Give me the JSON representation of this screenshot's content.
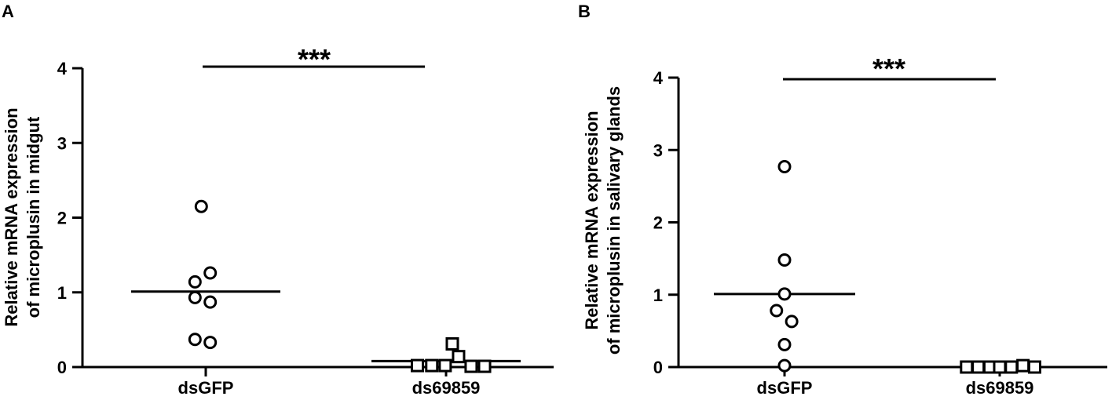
{
  "chart_data": [
    {
      "type": "scatter",
      "panel_label": "A",
      "title": "",
      "xlabel": "",
      "ylabel": [
        "Relative mRNA expression",
        "of microplusin in midgut"
      ],
      "ylim": [
        0,
        4
      ],
      "yticks": [
        0,
        1,
        2,
        3,
        4
      ],
      "categories": [
        "dsGFP",
        "ds69859"
      ],
      "series": [
        {
          "category": "dsGFP",
          "marker": "circle",
          "points": [
            {
              "x": -0.05,
              "y": 2.15
            },
            {
              "x": 0.05,
              "y": 1.26
            },
            {
              "x": -0.12,
              "y": 1.14
            },
            {
              "x": -0.12,
              "y": 0.93
            },
            {
              "x": 0.05,
              "y": 0.87
            },
            {
              "x": -0.12,
              "y": 0.37
            },
            {
              "x": 0.05,
              "y": 0.33
            }
          ],
          "mean": 1.01
        },
        {
          "category": "ds69859",
          "marker": "square",
          "points": [
            {
              "x": -0.32,
              "y": 0.02
            },
            {
              "x": -0.16,
              "y": 0.02
            },
            {
              "x": -0.01,
              "y": 0.02
            },
            {
              "x": 0.07,
              "y": 0.31
            },
            {
              "x": 0.14,
              "y": 0.14
            },
            {
              "x": 0.28,
              "y": 0.01
            },
            {
              "x": 0.43,
              "y": 0.01
            }
          ],
          "mean": 0.08
        }
      ],
      "significance": {
        "label": "***",
        "y": 4.0
      }
    },
    {
      "type": "scatter",
      "panel_label": "B",
      "title": "",
      "xlabel": "",
      "ylabel": [
        "Relative mRNA expression",
        "of microplusin in salivary glands"
      ],
      "ylim": [
        0,
        4
      ],
      "yticks": [
        0,
        1,
        2,
        3,
        4
      ],
      "categories": [
        "dsGFP",
        "ds69859"
      ],
      "series": [
        {
          "category": "dsGFP",
          "marker": "circle",
          "points": [
            {
              "x": 0.0,
              "y": 2.77
            },
            {
              "x": 0.0,
              "y": 1.48
            },
            {
              "x": 0.0,
              "y": 1.01
            },
            {
              "x": -0.09,
              "y": 0.78
            },
            {
              "x": 0.08,
              "y": 0.63
            },
            {
              "x": 0.0,
              "y": 0.31
            },
            {
              "x": 0.0,
              "y": 0.02
            }
          ],
          "mean": 1.01
        },
        {
          "category": "ds69859",
          "marker": "square",
          "points": [
            {
              "x": -0.37,
              "y": 0.0
            },
            {
              "x": -0.24,
              "y": 0.0
            },
            {
              "x": -0.11,
              "y": 0.0
            },
            {
              "x": 0.0,
              "y": 0.0
            },
            {
              "x": 0.13,
              "y": 0.0
            },
            {
              "x": 0.26,
              "y": 0.02
            },
            {
              "x": 0.39,
              "y": 0.0
            }
          ],
          "mean": 0.0
        }
      ],
      "significance": {
        "label": "***",
        "y": 4.0
      }
    }
  ]
}
